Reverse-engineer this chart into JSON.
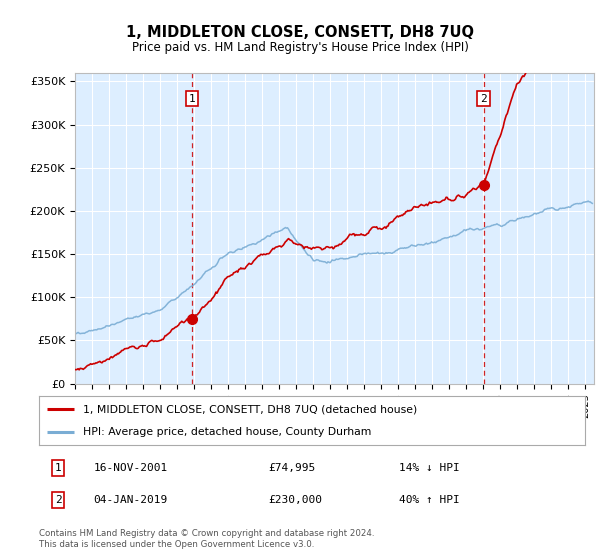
{
  "title": "1, MIDDLETON CLOSE, CONSETT, DH8 7UQ",
  "subtitle": "Price paid vs. HM Land Registry's House Price Index (HPI)",
  "legend_line1": "1, MIDDLETON CLOSE, CONSETT, DH8 7UQ (detached house)",
  "legend_line2": "HPI: Average price, detached house, County Durham",
  "annotation1_date": "16-NOV-2001",
  "annotation1_price": "£74,995",
  "annotation1_hpi": "14% ↓ HPI",
  "annotation2_date": "04-JAN-2019",
  "annotation2_price": "£230,000",
  "annotation2_hpi": "40% ↑ HPI",
  "footer1": "Contains HM Land Registry data © Crown copyright and database right 2024.",
  "footer2": "This data is licensed under the Open Government Licence v3.0.",
  "sale1_x": 2001.87,
  "sale1_y": 74995,
  "sale2_x": 2019.01,
  "sale2_y": 230000,
  "ylim_min": 0,
  "ylim_max": 360000,
  "xlim_min": 1995.0,
  "xlim_max": 2025.5,
  "property_color": "#cc0000",
  "hpi_color": "#7aadd4",
  "vline_color": "#cc0000",
  "plot_bg": "#ddeeff",
  "grid_color": "#ffffff",
  "yticks": [
    0,
    50000,
    100000,
    150000,
    200000,
    250000,
    300000,
    350000
  ],
  "ylabels": [
    "£0",
    "£50K",
    "£100K",
    "£150K",
    "£200K",
    "£250K",
    "£300K",
    "£350K"
  ]
}
